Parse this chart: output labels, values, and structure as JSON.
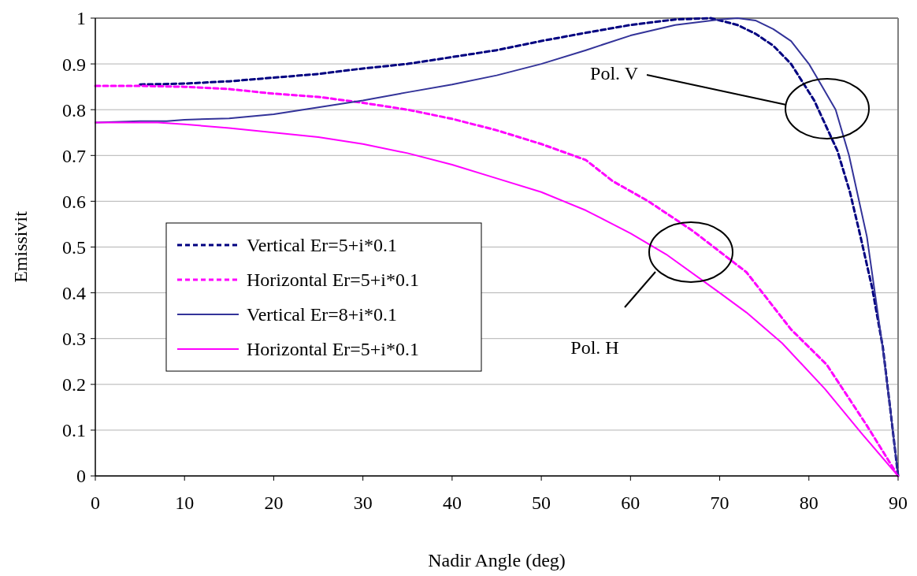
{
  "chart_data": {
    "type": "line",
    "xlabel": "Nadir Angle (deg)",
    "ylabel": "Emissivit",
    "xlim": [
      0,
      90
    ],
    "xticks": [
      0,
      10,
      20,
      30,
      40,
      50,
      60,
      70,
      80,
      90
    ],
    "ylim": [
      0,
      1
    ],
    "yticks": [
      0,
      0.1,
      0.2,
      0.3,
      0.4,
      0.5,
      0.6,
      0.7,
      0.8,
      0.9,
      1
    ],
    "grid": "y",
    "legend": "left",
    "marker": "none",
    "annotations": [
      "Pol. V",
      "Pol. H"
    ],
    "series": [
      {
        "name": "Vertical Er=5+i*0.1",
        "color": "#000080",
        "line_style": "dashed",
        "x": [
          5,
          10,
          15,
          20,
          25,
          30,
          35,
          40,
          45,
          50,
          55,
          60,
          65,
          69,
          72,
          74,
          76,
          78,
          80.6,
          83.2,
          84.6,
          85.7,
          87.1,
          88.3,
          89.1,
          90
        ],
        "values": [
          0.855,
          0.857,
          0.862,
          0.87,
          0.878,
          0.89,
          0.9,
          0.915,
          0.93,
          0.95,
          0.968,
          0.985,
          0.997,
          1.0,
          0.985,
          0.966,
          0.94,
          0.9,
          0.82,
          0.71,
          0.62,
          0.53,
          0.41,
          0.28,
          0.15,
          0
        ]
      },
      {
        "name": "Horizontal Er=5+i*0.1",
        "color": "#ff00ff",
        "line_style": "dashed",
        "x": [
          0,
          5,
          10,
          15,
          20,
          25,
          30,
          35,
          40,
          45,
          50,
          55,
          58,
          62,
          67,
          70,
          73,
          74,
          78,
          82,
          86.5,
          90
        ],
        "values": [
          0.852,
          0.852,
          0.85,
          0.845,
          0.835,
          0.828,
          0.815,
          0.8,
          0.78,
          0.755,
          0.725,
          0.69,
          0.644,
          0.6,
          0.535,
          0.49,
          0.445,
          0.42,
          0.32,
          0.243,
          0.11,
          0
        ]
      },
      {
        "name": "Vertical Er=8+i*0.1",
        "color": "#333399",
        "line_style": "solid",
        "x": [
          0,
          5,
          8,
          10,
          15,
          20,
          25,
          30,
          35,
          40,
          45,
          50,
          55,
          60,
          65,
          70,
          72,
          74,
          76,
          78,
          80,
          81,
          83,
          84.5,
          86.5,
          88.2,
          89.1,
          90
        ],
        "values": [
          0.772,
          0.775,
          0.775,
          0.778,
          0.781,
          0.79,
          0.805,
          0.82,
          0.838,
          0.855,
          0.875,
          0.9,
          0.93,
          0.962,
          0.985,
          0.997,
          1.0,
          0.995,
          0.976,
          0.95,
          0.9,
          0.867,
          0.8,
          0.7,
          0.523,
          0.29,
          0.15,
          0
        ]
      },
      {
        "name": "Horizontal Er=5+i*0.1",
        "color": "#ff00ff",
        "line_style": "solid",
        "x": [
          0,
          7,
          10,
          15,
          20,
          25,
          30,
          35,
          40,
          45,
          50,
          55,
          60,
          64,
          70,
          73,
          77,
          81.8,
          85.9,
          90
        ],
        "values": [
          0.772,
          0.772,
          0.768,
          0.76,
          0.75,
          0.74,
          0.725,
          0.705,
          0.68,
          0.65,
          0.62,
          0.58,
          0.53,
          0.484,
          0.4,
          0.357,
          0.29,
          0.19,
          0.093,
          0
        ]
      }
    ]
  }
}
